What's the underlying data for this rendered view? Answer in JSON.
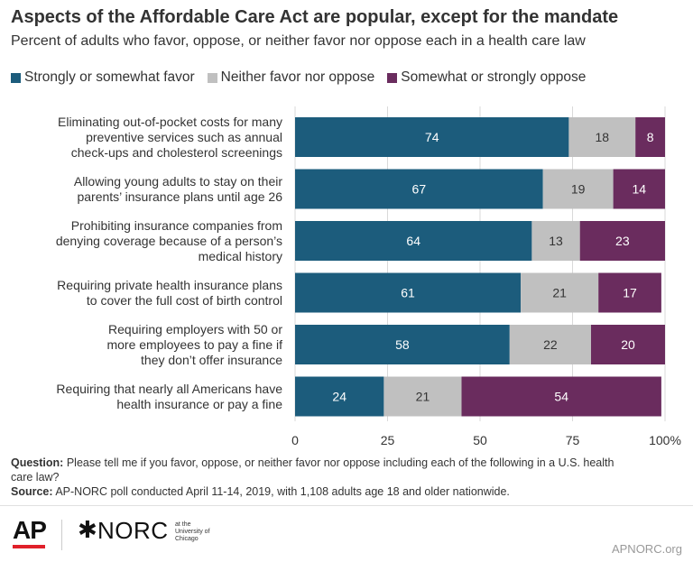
{
  "header": {
    "title": "Aspects of the Affordable Care Act are popular, except for the mandate",
    "subtitle": "Percent of adults who favor, oppose, or neither favor nor oppose each in a health care law"
  },
  "chart_data": {
    "type": "bar",
    "orientation": "horizontal",
    "stacked": true,
    "title": "Aspects of the Affordable Care Act are popular, except for the mandate",
    "subtitle": "Percent of adults who favor, oppose, or neither favor nor oppose each in a health care law",
    "categories": [
      [
        "Eliminating out-of-pocket costs for many",
        "preventive services such as annual",
        "check-ups and cholesterol screenings"
      ],
      [
        "Allowing young adults to stay on their",
        "parents’ insurance plans until age 26"
      ],
      [
        "Prohibiting insurance companies from",
        "denying coverage because of a person’s",
        "medical history"
      ],
      [
        "Requiring private health insurance plans",
        "to cover the full cost of birth control"
      ],
      [
        "Requiring employers with 50 or",
        "more employees to pay a fine if",
        "they don’t offer insurance"
      ],
      [
        "Requiring that nearly all Americans have",
        "health insurance or pay a fine"
      ]
    ],
    "series": [
      {
        "name": "Strongly or somewhat favor",
        "color": "#1c5c7c",
        "values": [
          74,
          67,
          64,
          61,
          58,
          24
        ]
      },
      {
        "name": "Neither favor nor oppose",
        "color": "#c0c0c0",
        "values": [
          18,
          19,
          13,
          21,
          22,
          21
        ]
      },
      {
        "name": "Somewhat or strongly oppose",
        "color": "#6a2c5e",
        "values": [
          8,
          14,
          23,
          17,
          20,
          54
        ]
      }
    ],
    "xlim": [
      0,
      100
    ],
    "xticks": [
      "0",
      "25",
      "50",
      "75",
      "100%"
    ],
    "xlabel": "",
    "ylabel": "",
    "legend_position": "top",
    "grid": true
  },
  "footer": {
    "question_label": "Question:",
    "question_text": "Please tell me if you favor, oppose, or neither favor nor oppose including each of the following in a U.S. health care law?",
    "source_label": "Source:",
    "source_text": "AP-NORC poll conducted April 11-14, 2019, with 1,108 adults age 18 and older nationwide.",
    "ap_logo": "AP",
    "norc_logo": "NORC",
    "norc_sub": "at the University of Chicago",
    "url": "APNORC.org"
  }
}
